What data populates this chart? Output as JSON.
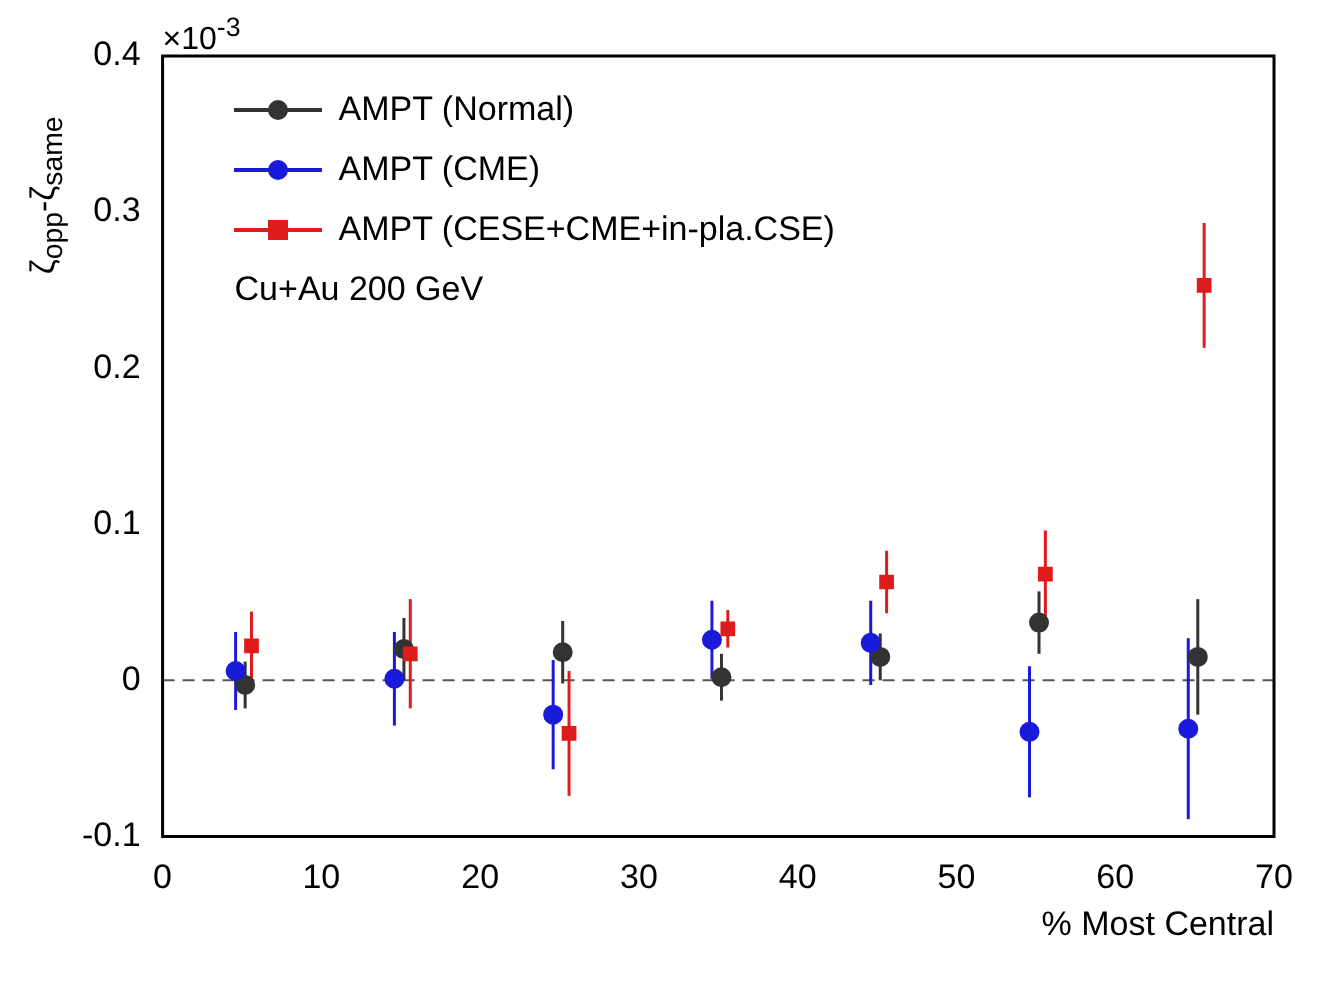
{
  "chart_data": {
    "type": "scatter",
    "xlabel": "% Most Central",
    "ylabel": "ζ$_{opp}$-ζ$_{same}$",
    "annotations": [
      "×10$^{-3}$",
      "Cu+Au 200 GeV"
    ],
    "xlim": [
      0,
      70
    ],
    "xticks": [
      0,
      10,
      20,
      30,
      40,
      50,
      60,
      70
    ],
    "ylim": [
      -0.1,
      0.4
    ],
    "yticks": [
      -0.1,
      0,
      0.1,
      0.2,
      0.3,
      0.4
    ],
    "legend": "top left",
    "ref_lines": [
      {
        "axis": "y",
        "value": 0,
        "color": "#555555",
        "line_style": "dashed"
      }
    ],
    "series": [
      {
        "name": "AMPT (Normal)",
        "color": "#333333",
        "marker": "circle",
        "x": [
          5.2,
          15.2,
          25.2,
          35.2,
          45.2,
          55.2,
          65.2
        ],
        "values": [
          -0.003,
          0.02,
          0.018,
          0.002,
          0.015,
          0.037,
          0.015
        ],
        "errors": [
          0.015,
          0.02,
          0.02,
          0.015,
          0.015,
          0.02,
          0.037
        ]
      },
      {
        "name": "AMPT (CME)",
        "color": "#1a1adb",
        "marker": "circle",
        "x": [
          4.6,
          14.6,
          24.6,
          34.6,
          44.6,
          54.6,
          64.6
        ],
        "values": [
          0.006,
          0.001,
          -0.022,
          0.026,
          0.024,
          -0.033,
          -0.031
        ],
        "errors": [
          0.025,
          0.03,
          0.035,
          0.025,
          0.027,
          0.042,
          0.058
        ]
      },
      {
        "name": "AMPT (CESE+CME+in-pla.CSE)",
        "color": "#e01b1b",
        "marker": "square",
        "x": [
          5.6,
          15.6,
          25.6,
          35.6,
          45.6,
          55.6,
          65.6
        ],
        "values": [
          0.022,
          0.017,
          -0.034,
          0.033,
          0.063,
          0.068,
          0.253
        ],
        "errors": [
          0.022,
          0.035,
          0.04,
          0.012,
          0.02,
          0.028,
          0.04
        ]
      }
    ]
  }
}
